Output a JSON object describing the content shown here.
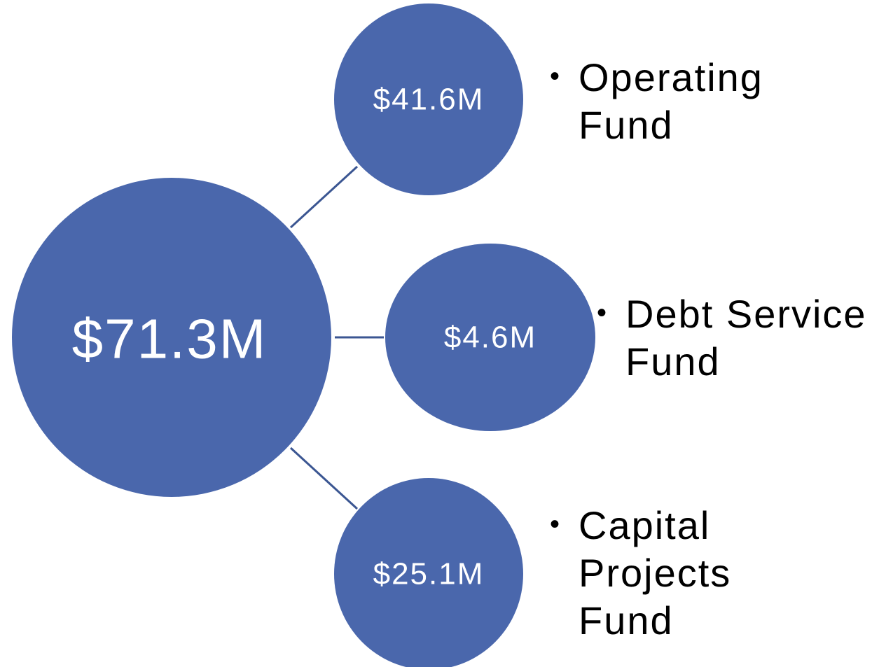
{
  "center": {
    "label": "$71.3M"
  },
  "nodes": [
    {
      "label": "$41.6M",
      "description_lines": [
        "Operating",
        "Fund"
      ]
    },
    {
      "label": "$4.6M",
      "description_lines": [
        "Debt Service",
        "Fund"
      ]
    },
    {
      "label": "$25.1M",
      "description_lines": [
        "Capital",
        "Projects",
        "Fund"
      ]
    }
  ]
}
